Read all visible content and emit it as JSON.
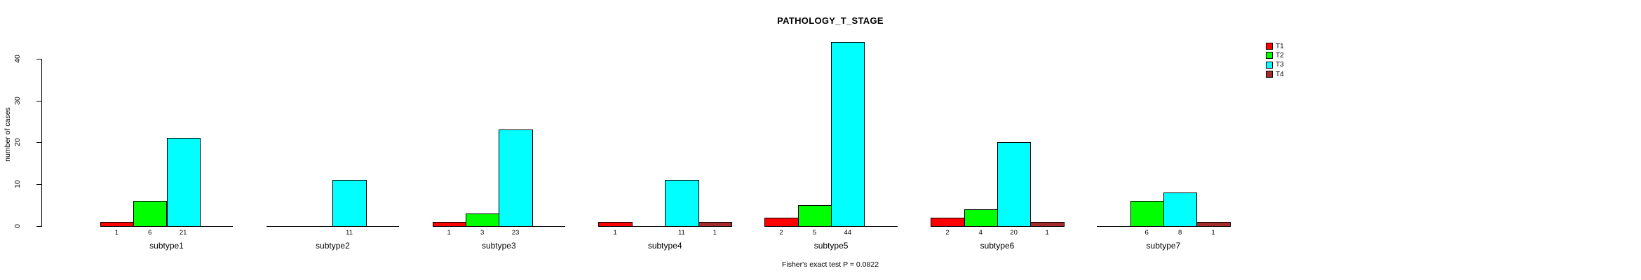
{
  "title": "PATHOLOGY_T_STAGE",
  "footer": "Fisher's exact test P = 0.0822",
  "legend": {
    "entries": [
      {
        "label": "T1",
        "color": "#FF0000"
      },
      {
        "label": "T2",
        "color": "#00FF00"
      },
      {
        "label": "T3",
        "color": "#00FFFF"
      },
      {
        "label": "T4",
        "color": "#A52A2A"
      }
    ]
  },
  "chart_data": {
    "type": "bar",
    "title": "PATHOLOGY_T_STAGE",
    "xlabel": "",
    "ylabel": "number of cases",
    "ylim": [
      0,
      44
    ],
    "yticks": [
      0,
      10,
      20,
      30,
      40
    ],
    "grid": false,
    "legend_position": "right",
    "annotation": "Fisher's exact test P = 0.0822",
    "value_labels": "nonzero counts printed under each bar",
    "categories": [
      "subtype1",
      "subtype2",
      "subtype3",
      "subtype4",
      "subtype5",
      "subtype6",
      "subtype7"
    ],
    "series": [
      {
        "name": "T1",
        "color": "#FF0000",
        "values": [
          1,
          0,
          1,
          1,
          2,
          2,
          0
        ]
      },
      {
        "name": "T2",
        "color": "#00FF00",
        "values": [
          6,
          0,
          3,
          0,
          5,
          4,
          6
        ]
      },
      {
        "name": "T3",
        "color": "#00FFFF",
        "values": [
          21,
          11,
          23,
          11,
          44,
          20,
          8
        ]
      },
      {
        "name": "T4",
        "color": "#A52A2A",
        "values": [
          0,
          0,
          0,
          1,
          0,
          1,
          1
        ]
      }
    ]
  }
}
